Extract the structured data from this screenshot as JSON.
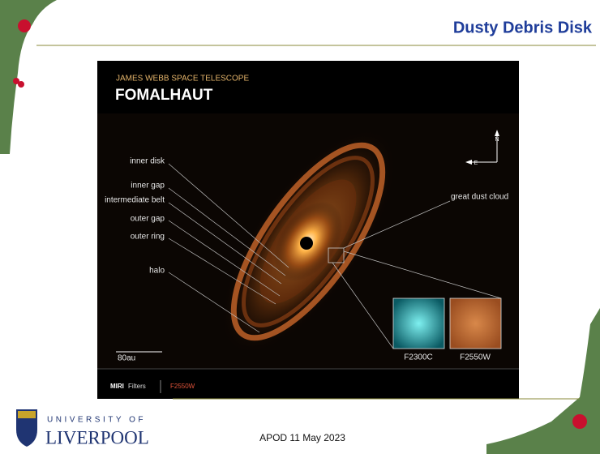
{
  "header": {
    "title": "Dusty Debris Disk"
  },
  "image": {
    "telescope": "JAMES WEBB SPACE TELESCOPE",
    "target": "FOMALHAUT",
    "labels": [
      "inner disk",
      "inner gap",
      "intermediate belt",
      "outer gap",
      "outer ring",
      "halo"
    ],
    "cloud_label": "great dust cloud",
    "compass": {
      "north": "N",
      "east": "E"
    },
    "scale": "80au",
    "insets": [
      "F2300C",
      "F2550W"
    ],
    "filters": {
      "label": "MIRI",
      "word": "Filters",
      "filter": "F2550W"
    }
  },
  "footer": {
    "university_top": "UNIVERSITY OF",
    "university_name": "LIVERPOOL",
    "caption": "APOD 11 May 2023"
  }
}
